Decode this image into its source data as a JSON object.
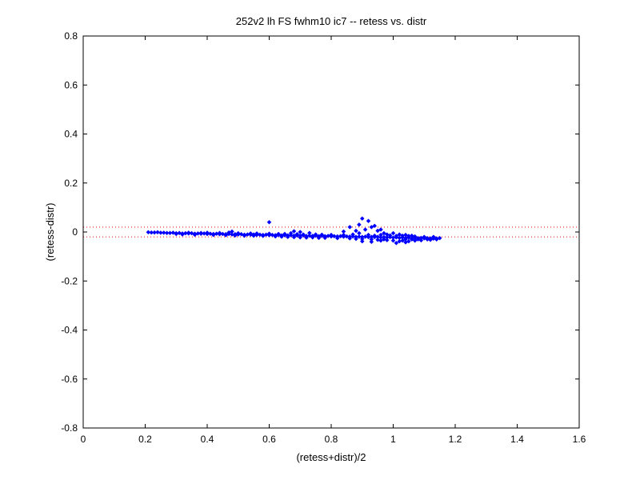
{
  "chart_data": {
    "type": "scatter",
    "title": "252v2 lh FS fwhm10 ic7 -- retess vs. distr",
    "xlabel": "(retess+distr)/2",
    "ylabel": "(retess-distr)",
    "xlim": [
      0,
      1.6
    ],
    "ylim": [
      -0.8,
      0.8
    ],
    "x_ticks": [
      0,
      0.2,
      0.4,
      0.6,
      0.8,
      1,
      1.2,
      1.4,
      1.6
    ],
    "x_tick_labels": [
      "0",
      "0.2",
      "0.4",
      "0.6",
      "0.8",
      "1",
      "1.2",
      "1.4",
      "1.6"
    ],
    "y_ticks": [
      -0.8,
      -0.6,
      -0.4,
      -0.2,
      0,
      0.2,
      0.4,
      0.6,
      0.8
    ],
    "y_tick_labels": [
      "-0.8",
      "-0.6",
      "-0.4",
      "-0.2",
      "0",
      "0.2",
      "0.4",
      "0.6",
      "0.8"
    ],
    "grid": false,
    "marker_color": "#0000ff",
    "reference_line_color": "#ff0000",
    "reference_lines": [
      {
        "style": "dotted",
        "y": 0.02
      },
      {
        "style": "dotted",
        "y": -0.02
      }
    ],
    "series": [
      {
        "marker": "diamond",
        "points": [
          [
            0.21,
            -0.001
          ],
          [
            0.22,
            -0.002
          ],
          [
            0.23,
            -0.002
          ],
          [
            0.24,
            -0.001
          ],
          [
            0.25,
            -0.003
          ],
          [
            0.26,
            -0.003
          ],
          [
            0.27,
            -0.004
          ],
          [
            0.28,
            -0.004
          ],
          [
            0.29,
            -0.003
          ],
          [
            0.3,
            -0.005
          ],
          [
            0.31,
            -0.004
          ],
          [
            0.32,
            -0.006
          ],
          [
            0.33,
            -0.005
          ],
          [
            0.34,
            -0.006
          ],
          [
            0.35,
            -0.005
          ],
          [
            0.36,
            -0.007
          ],
          [
            0.37,
            -0.006
          ],
          [
            0.38,
            -0.007
          ],
          [
            0.39,
            -0.006
          ],
          [
            0.4,
            -0.008
          ],
          [
            0.41,
            -0.007
          ],
          [
            0.42,
            -0.008
          ],
          [
            0.43,
            -0.007
          ],
          [
            0.44,
            -0.009
          ],
          [
            0.45,
            -0.008
          ],
          [
            0.46,
            -0.009
          ],
          [
            0.47,
            -0.008
          ],
          [
            0.48,
            -0.01
          ],
          [
            0.49,
            -0.009
          ],
          [
            0.5,
            -0.01
          ],
          [
            0.51,
            -0.009
          ],
          [
            0.52,
            -0.011
          ],
          [
            0.53,
            -0.01
          ],
          [
            0.54,
            -0.011
          ],
          [
            0.55,
            -0.01
          ],
          [
            0.56,
            -0.012
          ],
          [
            0.57,
            -0.011
          ],
          [
            0.58,
            -0.012
          ],
          [
            0.59,
            -0.011
          ],
          [
            0.6,
            -0.013
          ],
          [
            0.61,
            -0.012
          ],
          [
            0.62,
            -0.013
          ],
          [
            0.63,
            -0.012
          ],
          [
            0.64,
            -0.014
          ],
          [
            0.65,
            -0.013
          ],
          [
            0.66,
            -0.014
          ],
          [
            0.67,
            -0.013
          ],
          [
            0.68,
            -0.015
          ],
          [
            0.69,
            -0.014
          ],
          [
            0.7,
            -0.015
          ],
          [
            0.71,
            -0.014
          ],
          [
            0.72,
            -0.016
          ],
          [
            0.73,
            -0.015
          ],
          [
            0.74,
            -0.016
          ],
          [
            0.75,
            -0.015
          ],
          [
            0.76,
            -0.017
          ],
          [
            0.77,
            -0.016
          ],
          [
            0.78,
            -0.017
          ],
          [
            0.79,
            -0.016
          ],
          [
            0.8,
            -0.018
          ],
          [
            0.81,
            -0.017
          ],
          [
            0.82,
            -0.018
          ],
          [
            0.83,
            -0.017
          ],
          [
            0.84,
            -0.019
          ],
          [
            0.85,
            -0.018
          ],
          [
            0.86,
            -0.019
          ],
          [
            0.87,
            -0.018
          ],
          [
            0.88,
            -0.02
          ],
          [
            0.89,
            -0.019
          ],
          [
            0.9,
            -0.02
          ],
          [
            0.91,
            -0.019
          ],
          [
            0.92,
            -0.021
          ],
          [
            0.93,
            -0.02
          ],
          [
            0.94,
            -0.021
          ],
          [
            0.95,
            -0.02
          ],
          [
            0.96,
            -0.022
          ],
          [
            0.97,
            -0.021
          ],
          [
            0.98,
            -0.022
          ],
          [
            0.99,
            -0.021
          ],
          [
            1.0,
            -0.023
          ],
          [
            1.01,
            -0.022
          ],
          [
            1.02,
            -0.024
          ],
          [
            1.03,
            -0.023
          ],
          [
            1.04,
            -0.024
          ],
          [
            1.05,
            -0.023
          ],
          [
            1.06,
            -0.025
          ],
          [
            1.07,
            -0.024
          ],
          [
            1.08,
            -0.025
          ],
          [
            1.09,
            -0.024
          ],
          [
            1.1,
            -0.026
          ],
          [
            1.11,
            -0.025
          ],
          [
            1.12,
            -0.026
          ],
          [
            1.13,
            -0.027
          ],
          [
            1.14,
            -0.026
          ],
          [
            1.15,
            -0.025
          ],
          [
            0.3,
            -0.008
          ],
          [
            0.32,
            -0.01
          ],
          [
            0.34,
            -0.003
          ],
          [
            0.36,
            -0.011
          ],
          [
            0.38,
            -0.004
          ],
          [
            0.4,
            -0.003
          ],
          [
            0.42,
            -0.012
          ],
          [
            0.44,
            -0.004
          ],
          [
            0.46,
            -0.013
          ],
          [
            0.47,
            -0.002
          ],
          [
            0.48,
            0.002
          ],
          [
            0.49,
            -0.014
          ],
          [
            0.5,
            -0.005
          ],
          [
            0.52,
            -0.015
          ],
          [
            0.54,
            -0.006
          ],
          [
            0.55,
            -0.015
          ],
          [
            0.56,
            -0.006
          ],
          [
            0.58,
            -0.016
          ],
          [
            0.6,
            0.04
          ],
          [
            0.6,
            -0.007
          ],
          [
            0.62,
            -0.018
          ],
          [
            0.63,
            -0.008
          ],
          [
            0.64,
            -0.019
          ],
          [
            0.65,
            -0.008
          ],
          [
            0.66,
            -0.02
          ],
          [
            0.67,
            -0.005
          ],
          [
            0.68,
            0.003
          ],
          [
            0.68,
            -0.021
          ],
          [
            0.69,
            -0.009
          ],
          [
            0.7,
            0.0
          ],
          [
            0.7,
            -0.022
          ],
          [
            0.71,
            -0.01
          ],
          [
            0.72,
            -0.023
          ],
          [
            0.73,
            -0.004
          ],
          [
            0.74,
            -0.022
          ],
          [
            0.75,
            -0.01
          ],
          [
            0.76,
            -0.024
          ],
          [
            0.77,
            -0.011
          ],
          [
            0.78,
            -0.024
          ],
          [
            0.8,
            -0.012
          ],
          [
            0.82,
            -0.025
          ],
          [
            0.84,
            -0.012
          ],
          [
            0.84,
            0.002
          ],
          [
            0.86,
            -0.026
          ],
          [
            0.86,
            0.02
          ],
          [
            0.87,
            -0.01
          ],
          [
            0.88,
            -0.028
          ],
          [
            0.88,
            0.005
          ],
          [
            0.89,
            0.03
          ],
          [
            0.89,
            -0.005
          ],
          [
            0.9,
            0.055
          ],
          [
            0.9,
            -0.028
          ],
          [
            0.91,
            0.01
          ],
          [
            0.92,
            0.045
          ],
          [
            0.92,
            -0.012
          ],
          [
            0.93,
            -0.03
          ],
          [
            0.93,
            0.02
          ],
          [
            0.94,
            0.025
          ],
          [
            0.94,
            -0.015
          ],
          [
            0.95,
            -0.032
          ],
          [
            0.95,
            0.005
          ],
          [
            0.96,
            0.01
          ],
          [
            0.96,
            -0.012
          ],
          [
            0.97,
            -0.03
          ],
          [
            0.97,
            -0.005
          ],
          [
            0.98,
            -0.01
          ],
          [
            0.98,
            -0.033
          ],
          [
            0.99,
            -0.014
          ],
          [
            1.0,
            -0.035
          ],
          [
            1.0,
            -0.005
          ],
          [
            1.01,
            -0.016
          ],
          [
            1.02,
            -0.038
          ],
          [
            1.02,
            -0.01
          ],
          [
            1.03,
            -0.035
          ],
          [
            1.03,
            -0.015
          ],
          [
            1.04,
            -0.03
          ],
          [
            1.04,
            -0.012
          ],
          [
            1.05,
            -0.038
          ],
          [
            1.05,
            -0.016
          ],
          [
            1.06,
            -0.03
          ],
          [
            1.06,
            -0.015
          ],
          [
            1.07,
            -0.035
          ],
          [
            1.07,
            -0.018
          ],
          [
            1.08,
            -0.03
          ],
          [
            1.09,
            -0.034
          ],
          [
            1.1,
            -0.02
          ],
          [
            1.11,
            -0.03
          ],
          [
            1.12,
            -0.032
          ],
          [
            1.13,
            -0.02
          ],
          [
            1.14,
            -0.03
          ],
          [
            0.93,
            -0.04
          ],
          [
            0.96,
            -0.035
          ],
          [
            1.01,
            -0.045
          ],
          [
            1.04,
            -0.042
          ],
          [
            0.9,
            -0.038
          ]
        ]
      }
    ]
  }
}
